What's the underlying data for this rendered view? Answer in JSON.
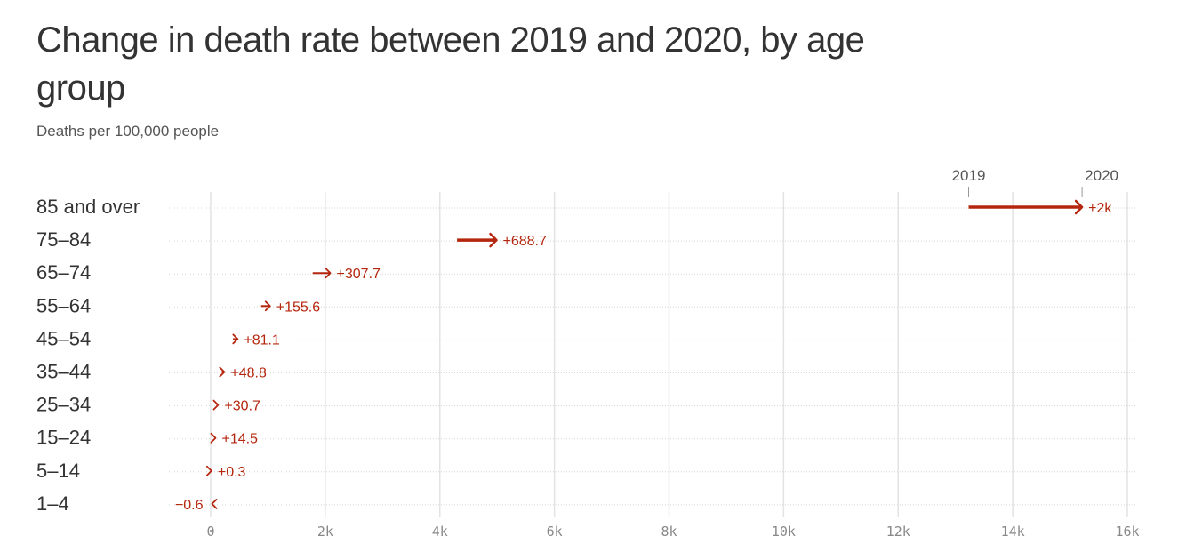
{
  "title": "Change in death rate between 2019 and 2020, by age group",
  "subtitle": "Deaths per 100,000 people",
  "colors": {
    "accent": "#b5260e",
    "grid": "#e3e3e3",
    "row_line": "#d6d6d6"
  },
  "chart_data": {
    "type": "dumbbell-arrow",
    "title": "Change in death rate between 2019 and 2020, by age group",
    "subtitle": "Deaths per 100,000 people",
    "legend": {
      "start_label": "2019",
      "end_label": "2020",
      "placement": "top-right"
    },
    "xlim": [
      0,
      16000
    ],
    "x_ticks": [
      0,
      2000,
      4000,
      6000,
      8000,
      10000,
      12000,
      14000,
      16000
    ],
    "x_tick_labels": [
      "0",
      "2k",
      "4k",
      "6k",
      "8k",
      "10k",
      "12k",
      "14k",
      "16k"
    ],
    "grid": true,
    "categories": [
      "85 and over",
      "75–84",
      "65–74",
      "55–64",
      "45–54",
      "35–44",
      "25–34",
      "15–24",
      "5–14",
      "1–4"
    ],
    "rows": [
      {
        "category": "85 and over",
        "rate_2019": 13230,
        "rate_2020": 15210,
        "change_label": "+2k"
      },
      {
        "category": "75–84",
        "rate_2019": 4300,
        "rate_2020": 4989,
        "change_label": "+688.7"
      },
      {
        "category": "65–74",
        "rate_2019": 1780,
        "rate_2020": 2088,
        "change_label": "+307.7"
      },
      {
        "category": "55–64",
        "rate_2019": 880,
        "rate_2020": 1036,
        "change_label": "+155.6"
      },
      {
        "category": "45–54",
        "rate_2019": 390,
        "rate_2020": 471,
        "change_label": "+81.1"
      },
      {
        "category": "35–44",
        "rate_2019": 190,
        "rate_2020": 239,
        "change_label": "+48.8"
      },
      {
        "category": "25–34",
        "rate_2019": 100,
        "rate_2020": 131,
        "change_label": "+30.7"
      },
      {
        "category": "15–24",
        "rate_2019": 70,
        "rate_2020": 85,
        "change_label": "+14.5"
      },
      {
        "category": "5–14",
        "rate_2019": 13.2,
        "rate_2020": 13.5,
        "change_label": "+0.3"
      },
      {
        "category": "1–4",
        "rate_2019": 24.4,
        "rate_2020": 23.8,
        "change_label": "−0.6"
      }
    ]
  }
}
